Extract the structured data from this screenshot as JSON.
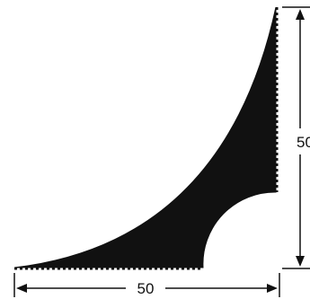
{
  "drawing": {
    "width_value": "50",
    "height_value": "50",
    "shape_color": "#111111",
    "line_color": "#111111",
    "background": "#ffffff"
  }
}
